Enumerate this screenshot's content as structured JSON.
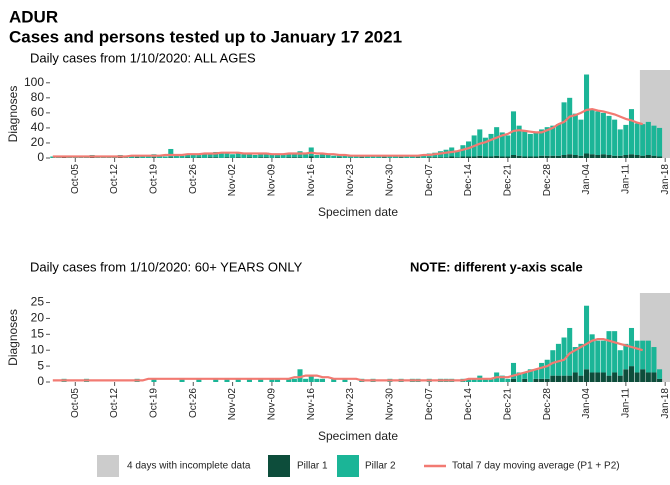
{
  "header": {
    "title": "ADUR",
    "subtitle": "Cases and persons tested up to January 17 2021"
  },
  "chart_data": [
    {
      "type": "bar",
      "stacked": true,
      "title": "Daily cases from 1/10/2020: ALL AGES",
      "xlabel": "Specimen date",
      "ylabel": "Diagnoses",
      "categories": [
        null,
        null,
        null,
        null,
        "Oct-05",
        null,
        null,
        null,
        null,
        null,
        null,
        "Oct-12",
        null,
        null,
        null,
        null,
        null,
        null,
        "Oct-19",
        null,
        null,
        null,
        null,
        null,
        null,
        "Oct-26",
        null,
        null,
        null,
        null,
        null,
        null,
        "Nov-02",
        null,
        null,
        null,
        null,
        null,
        null,
        "Nov-09",
        null,
        null,
        null,
        null,
        null,
        null,
        "Nov-16",
        null,
        null,
        null,
        null,
        null,
        null,
        "Nov-23",
        null,
        null,
        null,
        null,
        null,
        null,
        "Nov-30",
        null,
        null,
        null,
        null,
        null,
        null,
        "Dec-07",
        null,
        null,
        null,
        null,
        null,
        null,
        "Dec-14",
        null,
        null,
        null,
        null,
        null,
        null,
        "Dec-21",
        null,
        null,
        null,
        null,
        null,
        null,
        "Dec-28",
        null,
        null,
        null,
        null,
        null,
        null,
        "Jan-04",
        null,
        null,
        null,
        null,
        null,
        null,
        "Jan-11",
        null,
        null,
        null,
        null,
        null,
        null,
        "Jan-18"
      ],
      "series": [
        {
          "name": "Pillar 1",
          "color": "#0d4d3b",
          "values": [
            0,
            0,
            1,
            0,
            0,
            0,
            0,
            1,
            0,
            0,
            0,
            0,
            1,
            0,
            0,
            1,
            0,
            0,
            1,
            0,
            0,
            1,
            0,
            0,
            1,
            0,
            1,
            0,
            1,
            1,
            0,
            1,
            0,
            1,
            0,
            1,
            0,
            1,
            1,
            0,
            1,
            0,
            1,
            1,
            1,
            0,
            2,
            0,
            1,
            0,
            0,
            1,
            0,
            0,
            0,
            1,
            0,
            0,
            0,
            1,
            0,
            0,
            1,
            0,
            0,
            1,
            0,
            1,
            1,
            1,
            1,
            2,
            1,
            2,
            2,
            2,
            3,
            2,
            2,
            3,
            2,
            2,
            4,
            3,
            2,
            2,
            2,
            3,
            3,
            3,
            3,
            4,
            5,
            4,
            3,
            6,
            5,
            4,
            5,
            4,
            3,
            3,
            4,
            5,
            4,
            3,
            4,
            3,
            2,
            null
          ]
        },
        {
          "name": "Pillar 2",
          "color": "#1bb597",
          "values": [
            2,
            1,
            2,
            3,
            2,
            2,
            1,
            3,
            2,
            2,
            1,
            2,
            3,
            2,
            3,
            2,
            3,
            3,
            4,
            3,
            2,
            11,
            4,
            3,
            4,
            5,
            4,
            6,
            5,
            7,
            6,
            6,
            5,
            7,
            5,
            6,
            4,
            5,
            6,
            4,
            5,
            4,
            5,
            6,
            8,
            5,
            12,
            4,
            5,
            4,
            3,
            4,
            3,
            3,
            2,
            3,
            2,
            3,
            2,
            3,
            2,
            2,
            3,
            4,
            2,
            3,
            4,
            5,
            6,
            8,
            10,
            12,
            9,
            15,
            20,
            28,
            35,
            25,
            30,
            38,
            32,
            28,
            58,
            40,
            35,
            30,
            32,
            35,
            38,
            40,
            42,
            70,
            75,
            55,
            48,
            105,
            60,
            58,
            55,
            52,
            48,
            35,
            40,
            60,
            42,
            42,
            44,
            40,
            38,
            null
          ]
        },
        {
          "name": "Total 7 day moving average (P1 + P2)",
          "type": "line",
          "color": "#f27a72",
          "values": [
            2,
            2,
            2,
            2,
            2,
            2,
            2,
            2,
            2,
            2,
            2,
            2,
            2,
            2,
            3,
            3,
            3,
            3,
            3,
            3,
            4,
            4,
            4,
            4,
            5,
            5,
            5,
            6,
            6,
            6,
            7,
            7,
            7,
            7,
            6,
            6,
            6,
            6,
            6,
            5,
            5,
            5,
            6,
            6,
            6,
            6,
            7,
            6,
            6,
            5,
            5,
            4,
            4,
            3,
            3,
            3,
            3,
            3,
            3,
            3,
            3,
            3,
            3,
            3,
            3,
            3,
            4,
            4,
            5,
            6,
            7,
            8,
            9,
            11,
            13,
            16,
            19,
            21,
            24,
            27,
            30,
            32,
            36,
            37,
            36,
            35,
            34,
            34,
            37,
            40,
            45,
            48,
            55,
            57,
            60,
            64,
            65,
            63,
            62,
            60,
            58,
            55,
            52,
            50,
            47,
            45,
            null,
            null,
            null,
            null
          ]
        }
      ],
      "shaded_region": {
        "label": "4 days with incomplete data",
        "color": "#cccccc"
      },
      "ylim": [
        0,
        117
      ],
      "yticks": [
        0,
        20,
        40,
        60,
        80,
        100
      ]
    },
    {
      "type": "bar",
      "stacked": true,
      "title": "Daily cases from 1/10/2020: 60+ YEARS ONLY",
      "note": "NOTE: different y-axis scale",
      "xlabel": "Specimen date",
      "ylabel": "Diagnoses",
      "categories": [
        null,
        null,
        null,
        null,
        "Oct-05",
        null,
        null,
        null,
        null,
        null,
        null,
        "Oct-12",
        null,
        null,
        null,
        null,
        null,
        null,
        "Oct-19",
        null,
        null,
        null,
        null,
        null,
        null,
        "Oct-26",
        null,
        null,
        null,
        null,
        null,
        null,
        "Nov-02",
        null,
        null,
        null,
        null,
        null,
        null,
        "Nov-09",
        null,
        null,
        null,
        null,
        null,
        null,
        "Nov-16",
        null,
        null,
        null,
        null,
        null,
        null,
        "Nov-23",
        null,
        null,
        null,
        null,
        null,
        null,
        "Nov-30",
        null,
        null,
        null,
        null,
        null,
        null,
        "Dec-07",
        null,
        null,
        null,
        null,
        null,
        null,
        "Dec-14",
        null,
        null,
        null,
        null,
        null,
        null,
        "Dec-21",
        null,
        null,
        null,
        null,
        null,
        null,
        "Dec-28",
        null,
        null,
        null,
        null,
        null,
        null,
        "Jan-04",
        null,
        null,
        null,
        null,
        null,
        null,
        "Jan-11",
        null,
        null,
        null,
        null,
        null,
        null,
        "Jan-18"
      ],
      "series": [
        {
          "name": "Pillar 1",
          "color": "#0d4d3b",
          "values": [
            0,
            0,
            0,
            0,
            0,
            0,
            0,
            0,
            0,
            0,
            0,
            0,
            0,
            0,
            0,
            0,
            0,
            0,
            0,
            0,
            0,
            0,
            0,
            0,
            0,
            0,
            0,
            0,
            0,
            0,
            0,
            0,
            0,
            0,
            0,
            0,
            0,
            0,
            0,
            0,
            0,
            0,
            0,
            0,
            0,
            0,
            0,
            0,
            0,
            0,
            0,
            0,
            0,
            0,
            0,
            0,
            0,
            0,
            0,
            0,
            0,
            0,
            0,
            0,
            0,
            0,
            0,
            0,
            0,
            0,
            0,
            0,
            0,
            0,
            0,
            0,
            0,
            0,
            0,
            0,
            0,
            0,
            1,
            0,
            1,
            0,
            1,
            1,
            1,
            2,
            2,
            2,
            2,
            3,
            2,
            4,
            3,
            3,
            3,
            2,
            3,
            2,
            4,
            5,
            3,
            4,
            3,
            3,
            1,
            null
          ]
        },
        {
          "name": "Pillar 2",
          "color": "#1bb597",
          "values": [
            0,
            0,
            1,
            0,
            0,
            0,
            1,
            0,
            0,
            0,
            0,
            0,
            0,
            0,
            0,
            1,
            0,
            0,
            1,
            0,
            0,
            0,
            0,
            1,
            0,
            0,
            1,
            0,
            0,
            1,
            0,
            1,
            0,
            1,
            0,
            1,
            0,
            1,
            0,
            1,
            1,
            0,
            1,
            1,
            4,
            1,
            2,
            1,
            1,
            0,
            1,
            0,
            1,
            0,
            0,
            1,
            0,
            1,
            0,
            0,
            1,
            0,
            1,
            0,
            1,
            1,
            0,
            1,
            0,
            1,
            1,
            1,
            0,
            1,
            1,
            1,
            2,
            1,
            1,
            3,
            2,
            1,
            5,
            3,
            2,
            4,
            3,
            5,
            6,
            8,
            10,
            12,
            15,
            8,
            10,
            20,
            12,
            10,
            10,
            14,
            13,
            8,
            8,
            12,
            10,
            9,
            10,
            8,
            3,
            null
          ]
        },
        {
          "name": "Total 7 day moving average (P1 + P2)",
          "type": "line",
          "color": "#f27a72",
          "values": [
            0.5,
            0.5,
            0.5,
            0.5,
            0.5,
            0.5,
            0.5,
            0.5,
            0.5,
            0.5,
            0.5,
            0.5,
            0.5,
            0.5,
            0.5,
            0.5,
            0.5,
            1,
            1,
            1,
            1,
            1,
            1,
            1,
            1,
            1,
            1,
            1,
            1,
            1,
            1,
            1,
            1,
            1,
            1,
            1,
            1,
            1,
            1,
            1,
            1,
            1,
            1,
            1.5,
            1.5,
            2,
            2,
            2,
            1.5,
            1.5,
            1,
            1,
            1,
            1,
            1,
            0.5,
            0.5,
            0.5,
            0.5,
            0.5,
            0.5,
            0.5,
            0.5,
            0.5,
            0.5,
            0.5,
            0.5,
            0.5,
            0.5,
            0.5,
            0.5,
            0.5,
            0.5,
            0.5,
            1,
            1,
            1,
            1,
            1,
            1.5,
            1.5,
            1.5,
            2,
            2.5,
            3,
            3.5,
            4,
            4.5,
            5,
            6,
            6.5,
            7,
            9,
            10,
            11,
            12,
            13,
            13.5,
            13.5,
            13,
            12.5,
            12,
            11.5,
            11,
            10.5,
            10,
            null,
            null,
            null,
            null
          ]
        }
      ],
      "shaded_region": {
        "label": "4 days with incomplete data",
        "color": "#cccccc"
      },
      "ylim": [
        0,
        28
      ],
      "yticks": [
        0,
        5,
        10,
        15,
        20,
        25
      ]
    }
  ]
}
